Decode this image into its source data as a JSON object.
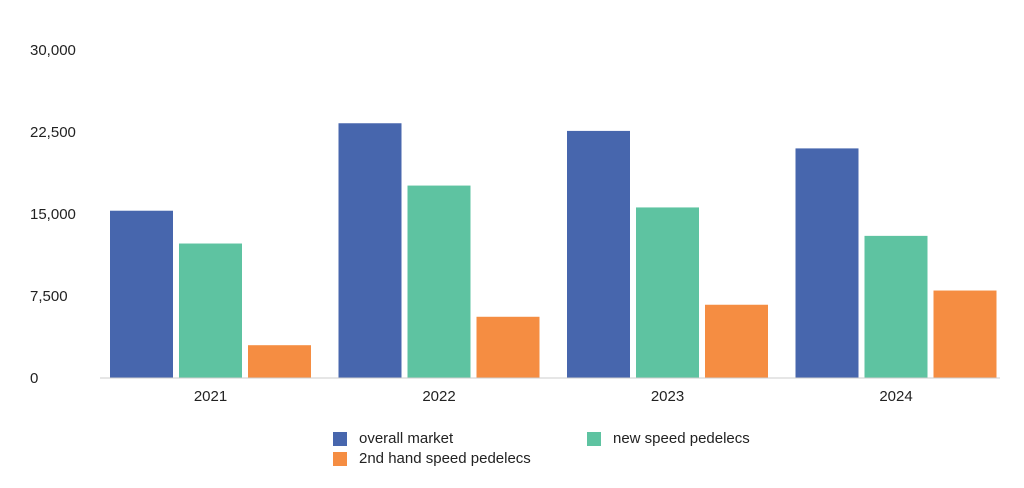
{
  "chart_data": {
    "type": "bar",
    "title": "",
    "xlabel": "",
    "ylabel": "",
    "categories": [
      "2021",
      "2022",
      "2023",
      "2024"
    ],
    "ylim": [
      0,
      30000
    ],
    "yticks": [
      0,
      7500,
      15000,
      22500,
      30000
    ],
    "ytick_labels": [
      "0",
      "7,500",
      "15,000",
      "22,500",
      "30,000"
    ],
    "grid": false,
    "legend_position": "bottom",
    "series": [
      {
        "name": "overall market",
        "color": "#4766ad",
        "values": [
          15300,
          23300,
          22600,
          21000
        ]
      },
      {
        "name": "new speed pedelecs",
        "color": "#5ec3a1",
        "values": [
          12300,
          17600,
          15600,
          13000
        ]
      },
      {
        "name": "2nd hand speed pedelecs",
        "color": "#f58d42",
        "values": [
          3000,
          5600,
          6700,
          8000
        ]
      }
    ]
  }
}
